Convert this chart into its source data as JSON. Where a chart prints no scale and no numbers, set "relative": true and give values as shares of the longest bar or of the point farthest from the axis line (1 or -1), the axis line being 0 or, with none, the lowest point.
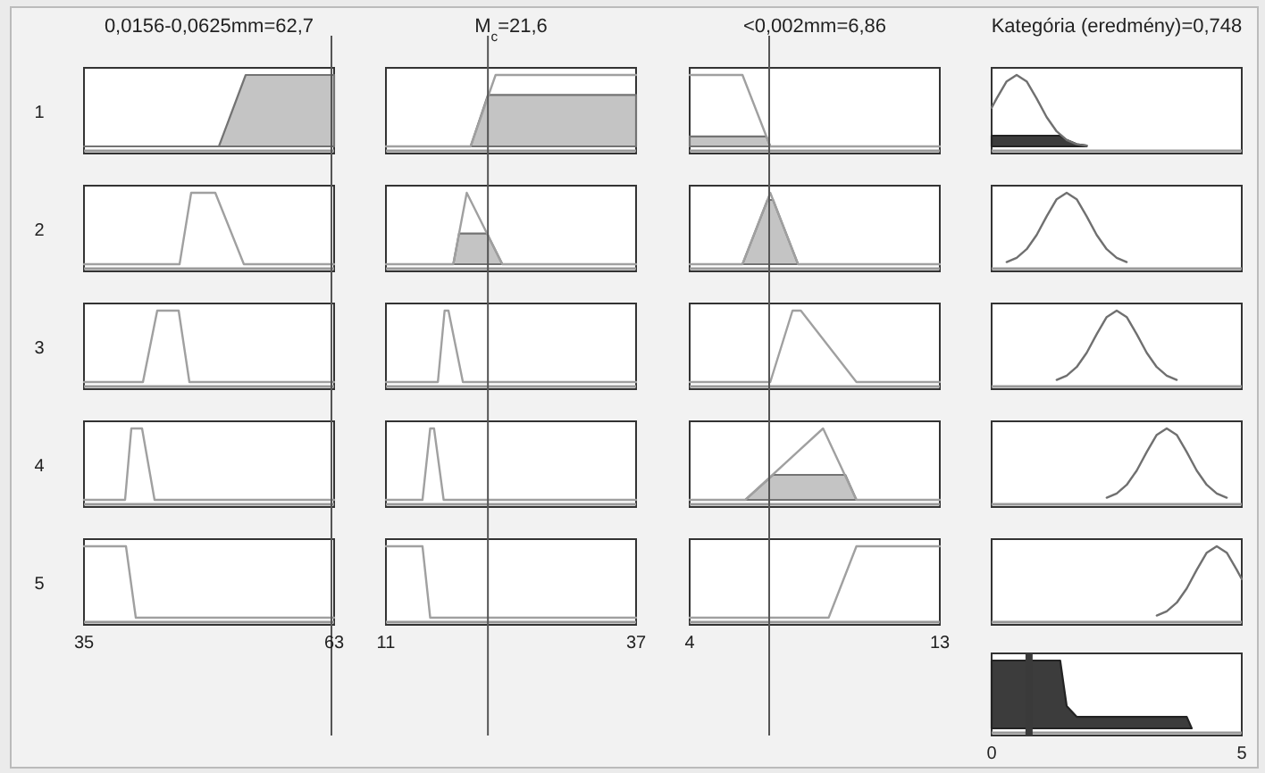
{
  "chart_data": [
    {
      "type": "line",
      "title": "0,0156-0,0625mm=62,7",
      "ylabel": "1",
      "relative": true,
      "xlim": [
        35,
        63
      ],
      "tick_labels": false,
      "ref_lines": [
        {
          "axis": "x",
          "value": 62.7
        }
      ],
      "series": [
        {
          "type": "area",
          "color": "#c4c4c4",
          "x": [
            35,
            50.1,
            53.1,
            63
          ],
          "values": [
            0,
            0,
            1,
            1
          ]
        }
      ]
    },
    {
      "type": "line",
      "title": "M$_{c}$=21,6",
      "relative": true,
      "xlim": [
        11,
        37
      ],
      "tick_labels": false,
      "ref_lines": [
        {
          "axis": "x",
          "value": 21.6
        }
      ],
      "series": [
        {
          "type": "area",
          "color": "#c4c4c4",
          "x": [
            11,
            19.8,
            21.6,
            37
          ],
          "values": [
            0,
            0,
            0.72,
            0.72
          ]
        },
        {
          "color": "#a0a0a0",
          "x": [
            11,
            19.8,
            22.4,
            37
          ],
          "values": [
            0,
            0,
            1,
            1
          ]
        }
      ]
    },
    {
      "type": "line",
      "title": "<0,002mm=6,86",
      "relative": true,
      "xlim": [
        4,
        13
      ],
      "tick_labels": false,
      "ref_lines": [
        {
          "axis": "x",
          "value": 6.86
        }
      ],
      "series": [
        {
          "type": "area",
          "color": "#c4c4c4",
          "x": [
            4,
            6.76,
            6.9
          ],
          "values": [
            0.14,
            0.14,
            0
          ]
        },
        {
          "color": "#a0a0a0",
          "x": [
            4,
            5.9,
            6.9,
            13
          ],
          "values": [
            1,
            1,
            0,
            0
          ]
        }
      ]
    },
    {
      "type": "line",
      "title": "Kategória (eredmény)=0,748",
      "relative": true,
      "xlim": [
        0,
        5
      ],
      "tick_labels": false,
      "series": [
        {
          "type": "area",
          "color": "#3c3c3c",
          "x": [
            0,
            1.37,
            1.5,
            1.7,
            1.9
          ],
          "values": [
            0.15,
            0.15,
            0.09,
            0.03,
            0.01
          ]
        },
        {
          "color": "#707070",
          "x": [
            0,
            0.1,
            0.3,
            0.5,
            0.7,
            0.9,
            1.1,
            1.3,
            1.5,
            1.7,
            1.9
          ],
          "values": [
            0.54,
            0.67,
            0.91,
            1,
            0.91,
            0.67,
            0.41,
            0.21,
            0.09,
            0.03,
            0.01
          ]
        }
      ]
    },
    {
      "type": "line",
      "ylabel": "2",
      "relative": true,
      "xlim": [
        35,
        63
      ],
      "tick_labels": false,
      "ref_lines": [
        {
          "axis": "x",
          "value": 62.7
        }
      ],
      "series": [
        {
          "color": "#a0a0a0",
          "x": [
            35,
            45.7,
            47,
            49.7,
            52.9,
            63
          ],
          "values": [
            0,
            0,
            1,
            1,
            0,
            0
          ]
        }
      ]
    },
    {
      "type": "line",
      "relative": true,
      "xlim": [
        11,
        37
      ],
      "tick_labels": false,
      "ref_lines": [
        {
          "axis": "x",
          "value": 21.6
        }
      ],
      "series": [
        {
          "type": "area",
          "color": "#c4c4c4",
          "x": [
            18,
            18.6,
            21.5,
            23.1
          ],
          "values": [
            0,
            0.43,
            0.43,
            0
          ]
        },
        {
          "color": "#a0a0a0",
          "x": [
            11,
            18,
            19.4,
            23.1,
            37
          ],
          "values": [
            0,
            0,
            1,
            0,
            0
          ]
        }
      ]
    },
    {
      "type": "line",
      "relative": true,
      "xlim": [
        4,
        13
      ],
      "tick_labels": false,
      "ref_lines": [
        {
          "axis": "x",
          "value": 6.86
        }
      ],
      "series": [
        {
          "type": "area",
          "color": "#c4c4c4",
          "x": [
            5.9,
            6.8,
            7,
            7.9
          ],
          "values": [
            0,
            0.9,
            0.9,
            0
          ]
        },
        {
          "color": "#a0a0a0",
          "x": [
            4,
            5.9,
            6.9,
            7.9,
            13
          ],
          "values": [
            0,
            0,
            1,
            0,
            0
          ]
        }
      ]
    },
    {
      "type": "line",
      "relative": true,
      "xlim": [
        0,
        5
      ],
      "tick_labels": false,
      "series": [
        {
          "color": "#707070",
          "x": [
            0.3,
            0.5,
            0.7,
            0.9,
            1.1,
            1.3,
            1.5,
            1.7,
            1.9,
            2.1,
            2.3,
            2.5,
            2.7
          ],
          "values": [
            0.03,
            0.09,
            0.21,
            0.41,
            0.67,
            0.91,
            1,
            0.91,
            0.67,
            0.41,
            0.21,
            0.09,
            0.03
          ]
        }
      ]
    },
    {
      "type": "line",
      "ylabel": "3",
      "relative": true,
      "xlim": [
        35,
        63
      ],
      "tick_labels": false,
      "ref_lines": [
        {
          "axis": "x",
          "value": 62.7
        }
      ],
      "series": [
        {
          "color": "#a0a0a0",
          "x": [
            35,
            41.6,
            43.2,
            45.6,
            46.8,
            63
          ],
          "values": [
            0,
            0,
            1,
            1,
            0,
            0
          ]
        }
      ]
    },
    {
      "type": "line",
      "relative": true,
      "xlim": [
        11,
        37
      ],
      "tick_labels": false,
      "ref_lines": [
        {
          "axis": "x",
          "value": 21.6
        }
      ],
      "series": [
        {
          "color": "#a0a0a0",
          "x": [
            11,
            16.4,
            17.1,
            17.5,
            19,
            37
          ],
          "values": [
            0,
            0,
            1,
            1,
            0,
            0
          ]
        }
      ]
    },
    {
      "type": "line",
      "relative": true,
      "xlim": [
        4,
        13
      ],
      "tick_labels": false,
      "ref_lines": [
        {
          "axis": "x",
          "value": 6.86
        }
      ],
      "series": [
        {
          "color": "#a0a0a0",
          "x": [
            4,
            6.9,
            7.7,
            8,
            10,
            13
          ],
          "values": [
            0,
            0,
            1,
            1,
            0,
            0
          ]
        }
      ]
    },
    {
      "type": "line",
      "relative": true,
      "xlim": [
        0,
        5
      ],
      "tick_labels": false,
      "series": [
        {
          "color": "#707070",
          "x": [
            1.3,
            1.5,
            1.7,
            1.9,
            2.1,
            2.3,
            2.5,
            2.7,
            2.9,
            3.1,
            3.3,
            3.5,
            3.7
          ],
          "values": [
            0.03,
            0.09,
            0.21,
            0.41,
            0.67,
            0.91,
            1,
            0.91,
            0.67,
            0.41,
            0.21,
            0.09,
            0.03
          ]
        }
      ]
    },
    {
      "type": "line",
      "ylabel": "4",
      "relative": true,
      "xlim": [
        35,
        63
      ],
      "tick_labels": false,
      "ref_lines": [
        {
          "axis": "x",
          "value": 62.7
        }
      ],
      "series": [
        {
          "color": "#a0a0a0",
          "x": [
            35,
            39.6,
            40.3,
            41.5,
            42.9,
            63
          ],
          "values": [
            0,
            0,
            1,
            1,
            0,
            0
          ]
        }
      ]
    },
    {
      "type": "line",
      "relative": true,
      "xlim": [
        11,
        37
      ],
      "tick_labels": false,
      "ref_lines": [
        {
          "axis": "x",
          "value": 21.6
        }
      ],
      "series": [
        {
          "color": "#a0a0a0",
          "x": [
            11,
            14.8,
            15.6,
            16,
            17,
            37
          ],
          "values": [
            0,
            0,
            1,
            1,
            0,
            0
          ]
        }
      ]
    },
    {
      "type": "line",
      "relative": true,
      "xlim": [
        4,
        13
      ],
      "tick_labels": false,
      "ref_lines": [
        {
          "axis": "x",
          "value": 6.86
        }
      ],
      "series": [
        {
          "type": "area",
          "color": "#c4c4c4",
          "x": [
            6,
            7,
            9.6,
            10
          ],
          "values": [
            0,
            0.35,
            0.35,
            0
          ]
        },
        {
          "color": "#a0a0a0",
          "x": [
            4,
            6,
            8.8,
            10,
            13
          ],
          "values": [
            0,
            0,
            1,
            0,
            0
          ]
        }
      ]
    },
    {
      "type": "line",
      "relative": true,
      "xlim": [
        0,
        5
      ],
      "tick_labels": false,
      "series": [
        {
          "color": "#707070",
          "x": [
            2.3,
            2.5,
            2.7,
            2.9,
            3.1,
            3.3,
            3.5,
            3.7,
            3.9,
            4.1,
            4.3,
            4.5,
            4.7
          ],
          "values": [
            0.03,
            0.09,
            0.21,
            0.41,
            0.67,
            0.91,
            1,
            0.91,
            0.67,
            0.41,
            0.21,
            0.09,
            0.03
          ]
        }
      ]
    },
    {
      "type": "line",
      "ylabel": "5",
      "relative": true,
      "xlim": [
        35,
        63
      ],
      "xticks": [
        35,
        63
      ],
      "tick_labels": "x",
      "ref_lines": [
        {
          "axis": "x",
          "value": 62.7
        }
      ],
      "series": [
        {
          "color": "#a0a0a0",
          "x": [
            35,
            39.7,
            40.8,
            63
          ],
          "values": [
            1,
            1,
            0,
            0
          ]
        }
      ]
    },
    {
      "type": "line",
      "relative": true,
      "xlim": [
        11,
        37
      ],
      "xticks": [
        11,
        37
      ],
      "tick_labels": "x",
      "ref_lines": [
        {
          "axis": "x",
          "value": 21.6
        }
      ],
      "series": [
        {
          "color": "#a0a0a0",
          "x": [
            11,
            14.8,
            15.6,
            37
          ],
          "values": [
            1,
            1,
            0,
            0
          ]
        }
      ]
    },
    {
      "type": "line",
      "relative": true,
      "xlim": [
        4,
        13
      ],
      "xticks": [
        4,
        13
      ],
      "tick_labels": "x",
      "ref_lines": [
        {
          "axis": "x",
          "value": 6.86
        }
      ],
      "series": [
        {
          "color": "#a0a0a0",
          "x": [
            4,
            9,
            10,
            13
          ],
          "values": [
            0,
            0,
            1,
            1
          ]
        }
      ]
    },
    {
      "type": "line",
      "relative": true,
      "xlim": [
        0,
        5
      ],
      "tick_labels": false,
      "series": [
        {
          "color": "#707070",
          "x": [
            3.3,
            3.5,
            3.7,
            3.9,
            4.1,
            4.3,
            4.5,
            4.7,
            4.9,
            5
          ],
          "values": [
            0.03,
            0.09,
            0.21,
            0.41,
            0.67,
            0.91,
            1,
            0.91,
            0.67,
            0.54
          ]
        }
      ]
    },
    {
      "type": "area",
      "relative": true,
      "xlim": [
        0,
        5
      ],
      "xticks": [
        0,
        5
      ],
      "tick_labels": "x",
      "ref_lines": [
        {
          "axis": "x",
          "value": 0.748,
          "color": "#3a3a3a"
        }
      ],
      "series": [
        {
          "color": "#3c3c3c",
          "x": [
            0,
            1.37,
            1.5,
            1.7,
            1.9,
            3.9,
            4
          ],
          "values": [
            1,
            1,
            0.33,
            0.17,
            0.17,
            0.17,
            0
          ]
        }
      ]
    }
  ]
}
